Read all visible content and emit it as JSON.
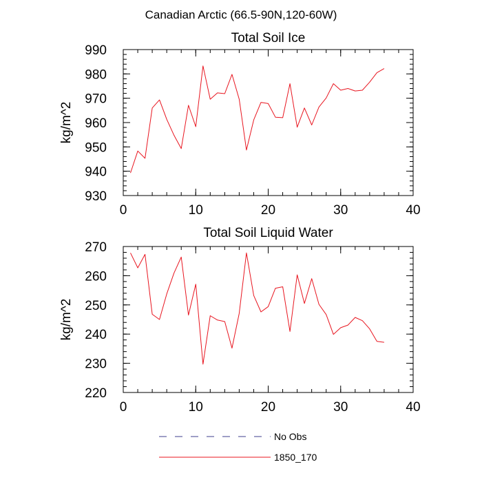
{
  "figure": {
    "suptitle": "Canadian Arctic (66.5-90N,120-60W)"
  },
  "colors": {
    "series_1850_170": "#e8141e",
    "no_obs": "#3c3c8c",
    "axis": "#000000"
  },
  "legend": [
    {
      "label": "No Obs",
      "style": "dashed",
      "color": "#3c3c8c"
    },
    {
      "label": "1850_170",
      "style": "solid",
      "color": "#e8141e"
    }
  ],
  "chart_data": [
    {
      "type": "line",
      "title": "Total Soil Ice",
      "ylabel": "kg/m^2",
      "xlabel": "",
      "xlim": [
        0,
        40
      ],
      "ylim": [
        930,
        990
      ],
      "xticks": [
        0,
        10,
        20,
        30,
        40
      ],
      "yticks": [
        930,
        940,
        950,
        960,
        970,
        980,
        990
      ],
      "series": [
        {
          "name": "1850_170",
          "x": [
            1,
            2,
            3,
            4,
            5,
            6,
            7,
            8,
            9,
            10,
            11,
            12,
            13,
            14,
            15,
            16,
            17,
            18,
            19,
            20,
            21,
            22,
            23,
            24,
            25,
            26,
            27,
            28,
            29,
            30,
            31,
            32,
            33,
            34,
            35,
            36
          ],
          "values": [
            939.3,
            948.3,
            945.3,
            966.0,
            969.3,
            961.3,
            954.8,
            949.3,
            967.1,
            958.3,
            983.3,
            969.6,
            972.2,
            971.9,
            979.8,
            969.6,
            948.7,
            961.1,
            968.3,
            967.8,
            962.2,
            962.0,
            976.0,
            958.1,
            966.0,
            959.0,
            966.4,
            970.1,
            976.0,
            973.3,
            974.0,
            973.0,
            973.3,
            976.6,
            980.5,
            982.2
          ]
        }
      ]
    },
    {
      "type": "line",
      "title": "Total Soil Liquid Water",
      "ylabel": "kg/m^2",
      "xlabel": "",
      "xlim": [
        0,
        40
      ],
      "ylim": [
        220,
        270
      ],
      "xticks": [
        0,
        10,
        20,
        30,
        40
      ],
      "yticks": [
        220,
        230,
        240,
        250,
        260,
        270
      ],
      "series": [
        {
          "name": "1850_170",
          "x": [
            1,
            2,
            3,
            4,
            5,
            6,
            7,
            8,
            9,
            10,
            11,
            12,
            13,
            14,
            15,
            16,
            17,
            18,
            19,
            20,
            21,
            22,
            23,
            24,
            25,
            26,
            27,
            28,
            29,
            30,
            31,
            32,
            33,
            34,
            35,
            36
          ],
          "values": [
            267.8,
            262.7,
            267.3,
            246.8,
            245.0,
            253.8,
            260.9,
            266.4,
            246.5,
            257.1,
            229.7,
            246.3,
            244.8,
            244.3,
            235.2,
            247.1,
            267.8,
            253.2,
            247.6,
            249.4,
            255.7,
            256.2,
            240.9,
            260.3,
            250.5,
            259.0,
            250.2,
            246.7,
            239.9,
            242.2,
            243.1,
            245.7,
            244.6,
            241.8,
            237.5,
            237.2
          ]
        }
      ]
    }
  ]
}
